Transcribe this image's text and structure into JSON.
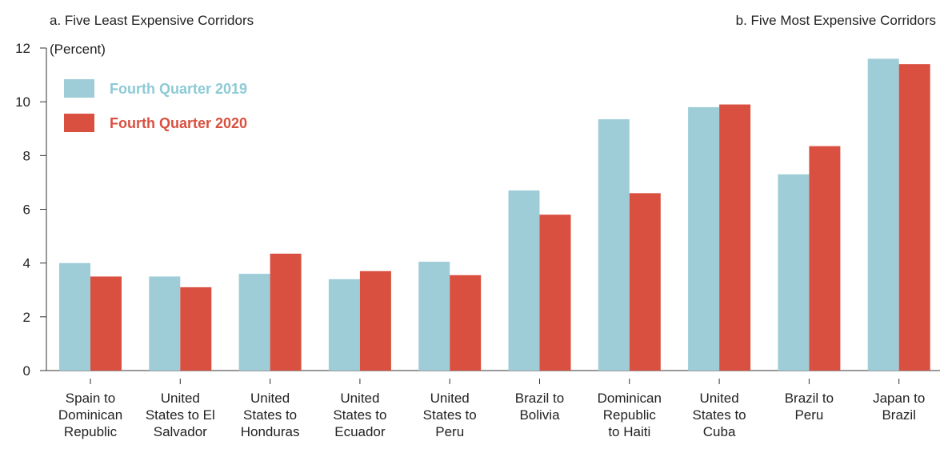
{
  "chart_data": {
    "type": "bar",
    "panels": [
      {
        "label": "a. Five Least Expensive Corridors"
      },
      {
        "label": "b. Five Most Expensive Corridors"
      }
    ],
    "unit_label": "(Percent)",
    "categories": [
      "Spain to Dominican Republic",
      "United States to El Salvador",
      "United States to Honduras",
      "United States to Ecuador",
      "United States to Peru",
      "Brazil to Bolivia",
      "Dominican Republic to Haiti",
      "United States to Cuba",
      "Brazil to Peru",
      "Japan to Brazil"
    ],
    "category_lines": [
      [
        "Spain to",
        "Dominican",
        "Republic"
      ],
      [
        "United",
        "States to El",
        "Salvador"
      ],
      [
        "United",
        "States to",
        "Honduras"
      ],
      [
        "United",
        "States to",
        "Ecuador"
      ],
      [
        "United",
        "States to",
        "Peru"
      ],
      [
        "Brazil to",
        "Bolivia"
      ],
      [
        "Dominican",
        "Republic",
        "to Haiti"
      ],
      [
        "United",
        "States to",
        "Cuba"
      ],
      [
        "Brazil to",
        "Peru"
      ],
      [
        "Japan to",
        "Brazil"
      ]
    ],
    "series": [
      {
        "name": "Fourth Quarter 2019",
        "color": "#9ecdd8",
        "values": [
          4.0,
          3.5,
          3.6,
          3.4,
          4.05,
          6.7,
          9.35,
          9.8,
          7.3,
          11.6
        ]
      },
      {
        "name": "Fourth Quarter 2020",
        "color": "#d95040",
        "values": [
          3.5,
          3.1,
          4.35,
          3.7,
          3.55,
          5.8,
          6.6,
          9.9,
          8.35,
          11.4
        ]
      }
    ],
    "ylim": [
      0,
      12
    ],
    "yticks": [
      0,
      2,
      4,
      6,
      8,
      10,
      12
    ],
    "grid": false,
    "legend_position": "top-left"
  },
  "colors": {
    "series_2019": "#9ecdd8",
    "series_2020": "#d95040",
    "legend_text_2019": "#8ccad6",
    "legend_text_2020": "#d95040",
    "axis": "#333333"
  }
}
